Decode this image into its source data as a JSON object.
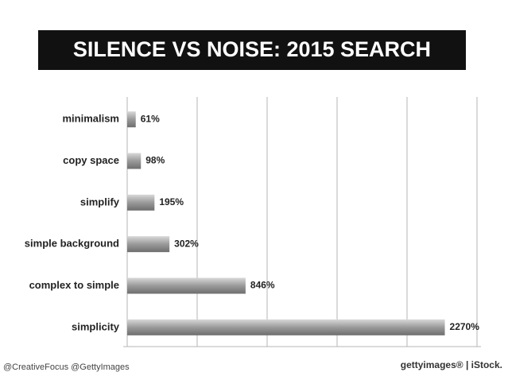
{
  "chart_data": {
    "type": "bar",
    "orientation": "horizontal",
    "title": "SILENCE VS NOISE: 2015 SEARCH",
    "categories": [
      "minimalism",
      "copy space",
      "simplify",
      "simple background",
      "complex to simple",
      "simplicity"
    ],
    "values": [
      61,
      98,
      195,
      302,
      846,
      2270
    ],
    "value_labels": [
      "61%",
      "98%",
      "195%",
      "302%",
      "846%",
      "2270%"
    ],
    "color": "#9a9a9a",
    "xlim": [
      0,
      2500
    ],
    "xticks": [
      0,
      500,
      1000,
      1500,
      2000,
      2500
    ],
    "grid": true,
    "credit": "@CreativeFocus @GettyImages",
    "source": "gettyimages® | iStock."
  }
}
